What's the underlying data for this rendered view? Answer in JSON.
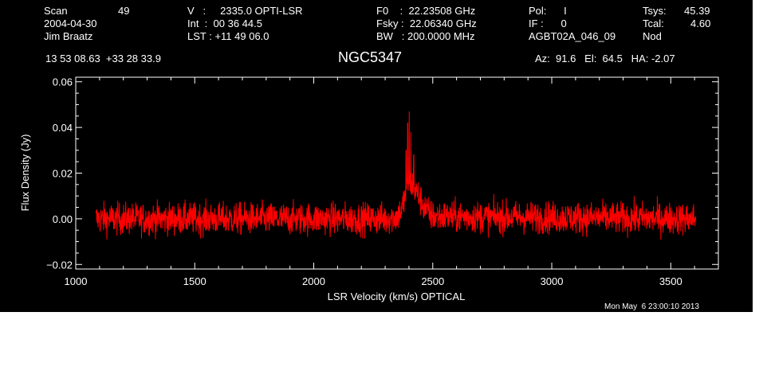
{
  "header": {
    "scan_label": "Scan",
    "scan_value": "49",
    "date": "2004-04-30",
    "observer": "Jim Braatz",
    "v_line": "V   :     2335.0 OPTI-LSR",
    "int_line": "Int  :  00 36 44.5",
    "lst_line": "LST : +11 49 06.0",
    "f0_line": "F0    :  22.23508 GHz",
    "fsky_line": "Fsky :  22.06340 GHz",
    "bw_line": "BW   : 200.0000 MHz",
    "pol_line": "Pol:      I",
    "if_line": "IF :      0",
    "project": "AGBT02A_046_09",
    "tsys_label": "Tsys:",
    "tsys_value": "45.39",
    "tcal_label": "Tcal:",
    "tcal_value": "4.60",
    "mode": "Nod",
    "coords": "13 53 08.63  +33 28 33.9",
    "source": "NGC5347",
    "pointing": "Az:  91.6   El:  64.5   HA: -2.07"
  },
  "timestamp": "Mon May  6 23:00:10 2013",
  "chart_data": {
    "type": "line",
    "title": "NGC5347",
    "xlabel": "LSR Velocity (km/s) OPTICAL",
    "ylabel": "Flux Density (Jy)",
    "xlim": [
      1000,
      3700
    ],
    "ylim": [
      -0.022,
      0.062
    ],
    "xticks": [
      1000,
      1500,
      2000,
      2500,
      3000,
      3500
    ],
    "yticks": [
      -0.02,
      0.0,
      0.02,
      0.04,
      0.06
    ],
    "xtick_labels": [
      "1000",
      "1500",
      "2000",
      "2500",
      "3000",
      "3500"
    ],
    "ytick_labels": [
      "−0.02",
      "0.00",
      "0.02",
      "0.04",
      "0.06"
    ],
    "grid": false,
    "series": [
      {
        "color": "#ff0000",
        "x_range": [
          1085,
          3605
        ],
        "noise_rms_jy": 0.0035,
        "x": [
          1085,
          2300,
          2350,
          2370,
          2385,
          2395,
          2400,
          2405,
          2415,
          2425,
          2440,
          2460,
          2480,
          2500,
          3605
        ],
        "y": [
          0.0,
          0.0,
          0.001,
          0.004,
          0.01,
          0.015,
          0.017,
          0.016,
          0.015,
          0.013,
          0.01,
          0.006,
          0.003,
          0.001,
          0.0
        ],
        "spikes_x": [
          2401,
          2395,
          2408,
          2388,
          2420
        ],
        "spikes_y": [
          0.047,
          0.042,
          0.038,
          0.03,
          0.028
        ]
      }
    ]
  }
}
